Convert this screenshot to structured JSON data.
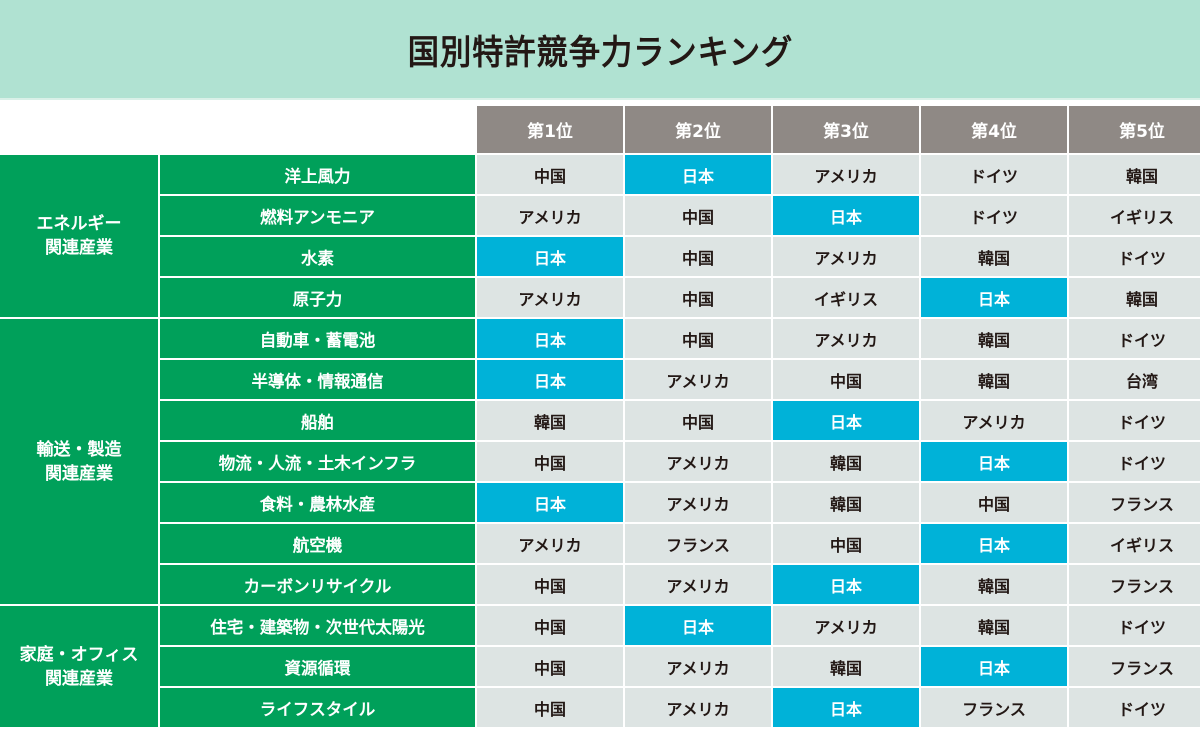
{
  "title": "国別特許競争力ランキング",
  "colors": {
    "title_band": "#b0e2d2",
    "header_gray": "#8f8985",
    "category_green": "#00a05a",
    "cell_gray": "#dde4e3",
    "japan_highlight": "#00b2d8",
    "text_dark": "#231815"
  },
  "highlight_country": "日本",
  "columns": [
    "第1位",
    "第2位",
    "第3位",
    "第4位",
    "第5位"
  ],
  "groups": [
    {
      "label_lines": [
        "エネルギー",
        "関連産業"
      ],
      "rows": [
        {
          "item": "洋上風力",
          "ranks": [
            "中国",
            "日本",
            "アメリカ",
            "ドイツ",
            "韓国"
          ]
        },
        {
          "item": "燃料アンモニア",
          "ranks": [
            "アメリカ",
            "中国",
            "日本",
            "ドイツ",
            "イギリス"
          ]
        },
        {
          "item": "水素",
          "ranks": [
            "日本",
            "中国",
            "アメリカ",
            "韓国",
            "ドイツ"
          ]
        },
        {
          "item": "原子力",
          "ranks": [
            "アメリカ",
            "中国",
            "イギリス",
            "日本",
            "韓国"
          ]
        }
      ]
    },
    {
      "label_lines": [
        "輸送・製造",
        "関連産業"
      ],
      "rows": [
        {
          "item": "自動車・蓄電池",
          "ranks": [
            "日本",
            "中国",
            "アメリカ",
            "韓国",
            "ドイツ"
          ]
        },
        {
          "item": "半導体・情報通信",
          "ranks": [
            "日本",
            "アメリカ",
            "中国",
            "韓国",
            "台湾"
          ]
        },
        {
          "item": "船舶",
          "ranks": [
            "韓国",
            "中国",
            "日本",
            "アメリカ",
            "ドイツ"
          ]
        },
        {
          "item": "物流・人流・土木インフラ",
          "ranks": [
            "中国",
            "アメリカ",
            "韓国",
            "日本",
            "ドイツ"
          ]
        },
        {
          "item": "食料・農林水産",
          "ranks": [
            "日本",
            "アメリカ",
            "韓国",
            "中国",
            "フランス"
          ]
        },
        {
          "item": "航空機",
          "ranks": [
            "アメリカ",
            "フランス",
            "中国",
            "日本",
            "イギリス"
          ]
        },
        {
          "item": "カーボンリサイクル",
          "ranks": [
            "中国",
            "アメリカ",
            "日本",
            "韓国",
            "フランス"
          ]
        }
      ]
    },
    {
      "label_lines": [
        "家庭・オフィス",
        "関連産業"
      ],
      "rows": [
        {
          "item": "住宅・建築物・次世代太陽光",
          "ranks": [
            "中国",
            "日本",
            "アメリカ",
            "韓国",
            "ドイツ"
          ]
        },
        {
          "item": "資源循環",
          "ranks": [
            "中国",
            "アメリカ",
            "韓国",
            "日本",
            "フランス"
          ]
        },
        {
          "item": "ライフスタイル",
          "ranks": [
            "中国",
            "アメリカ",
            "日本",
            "フランス",
            "ドイツ"
          ]
        }
      ]
    }
  ]
}
